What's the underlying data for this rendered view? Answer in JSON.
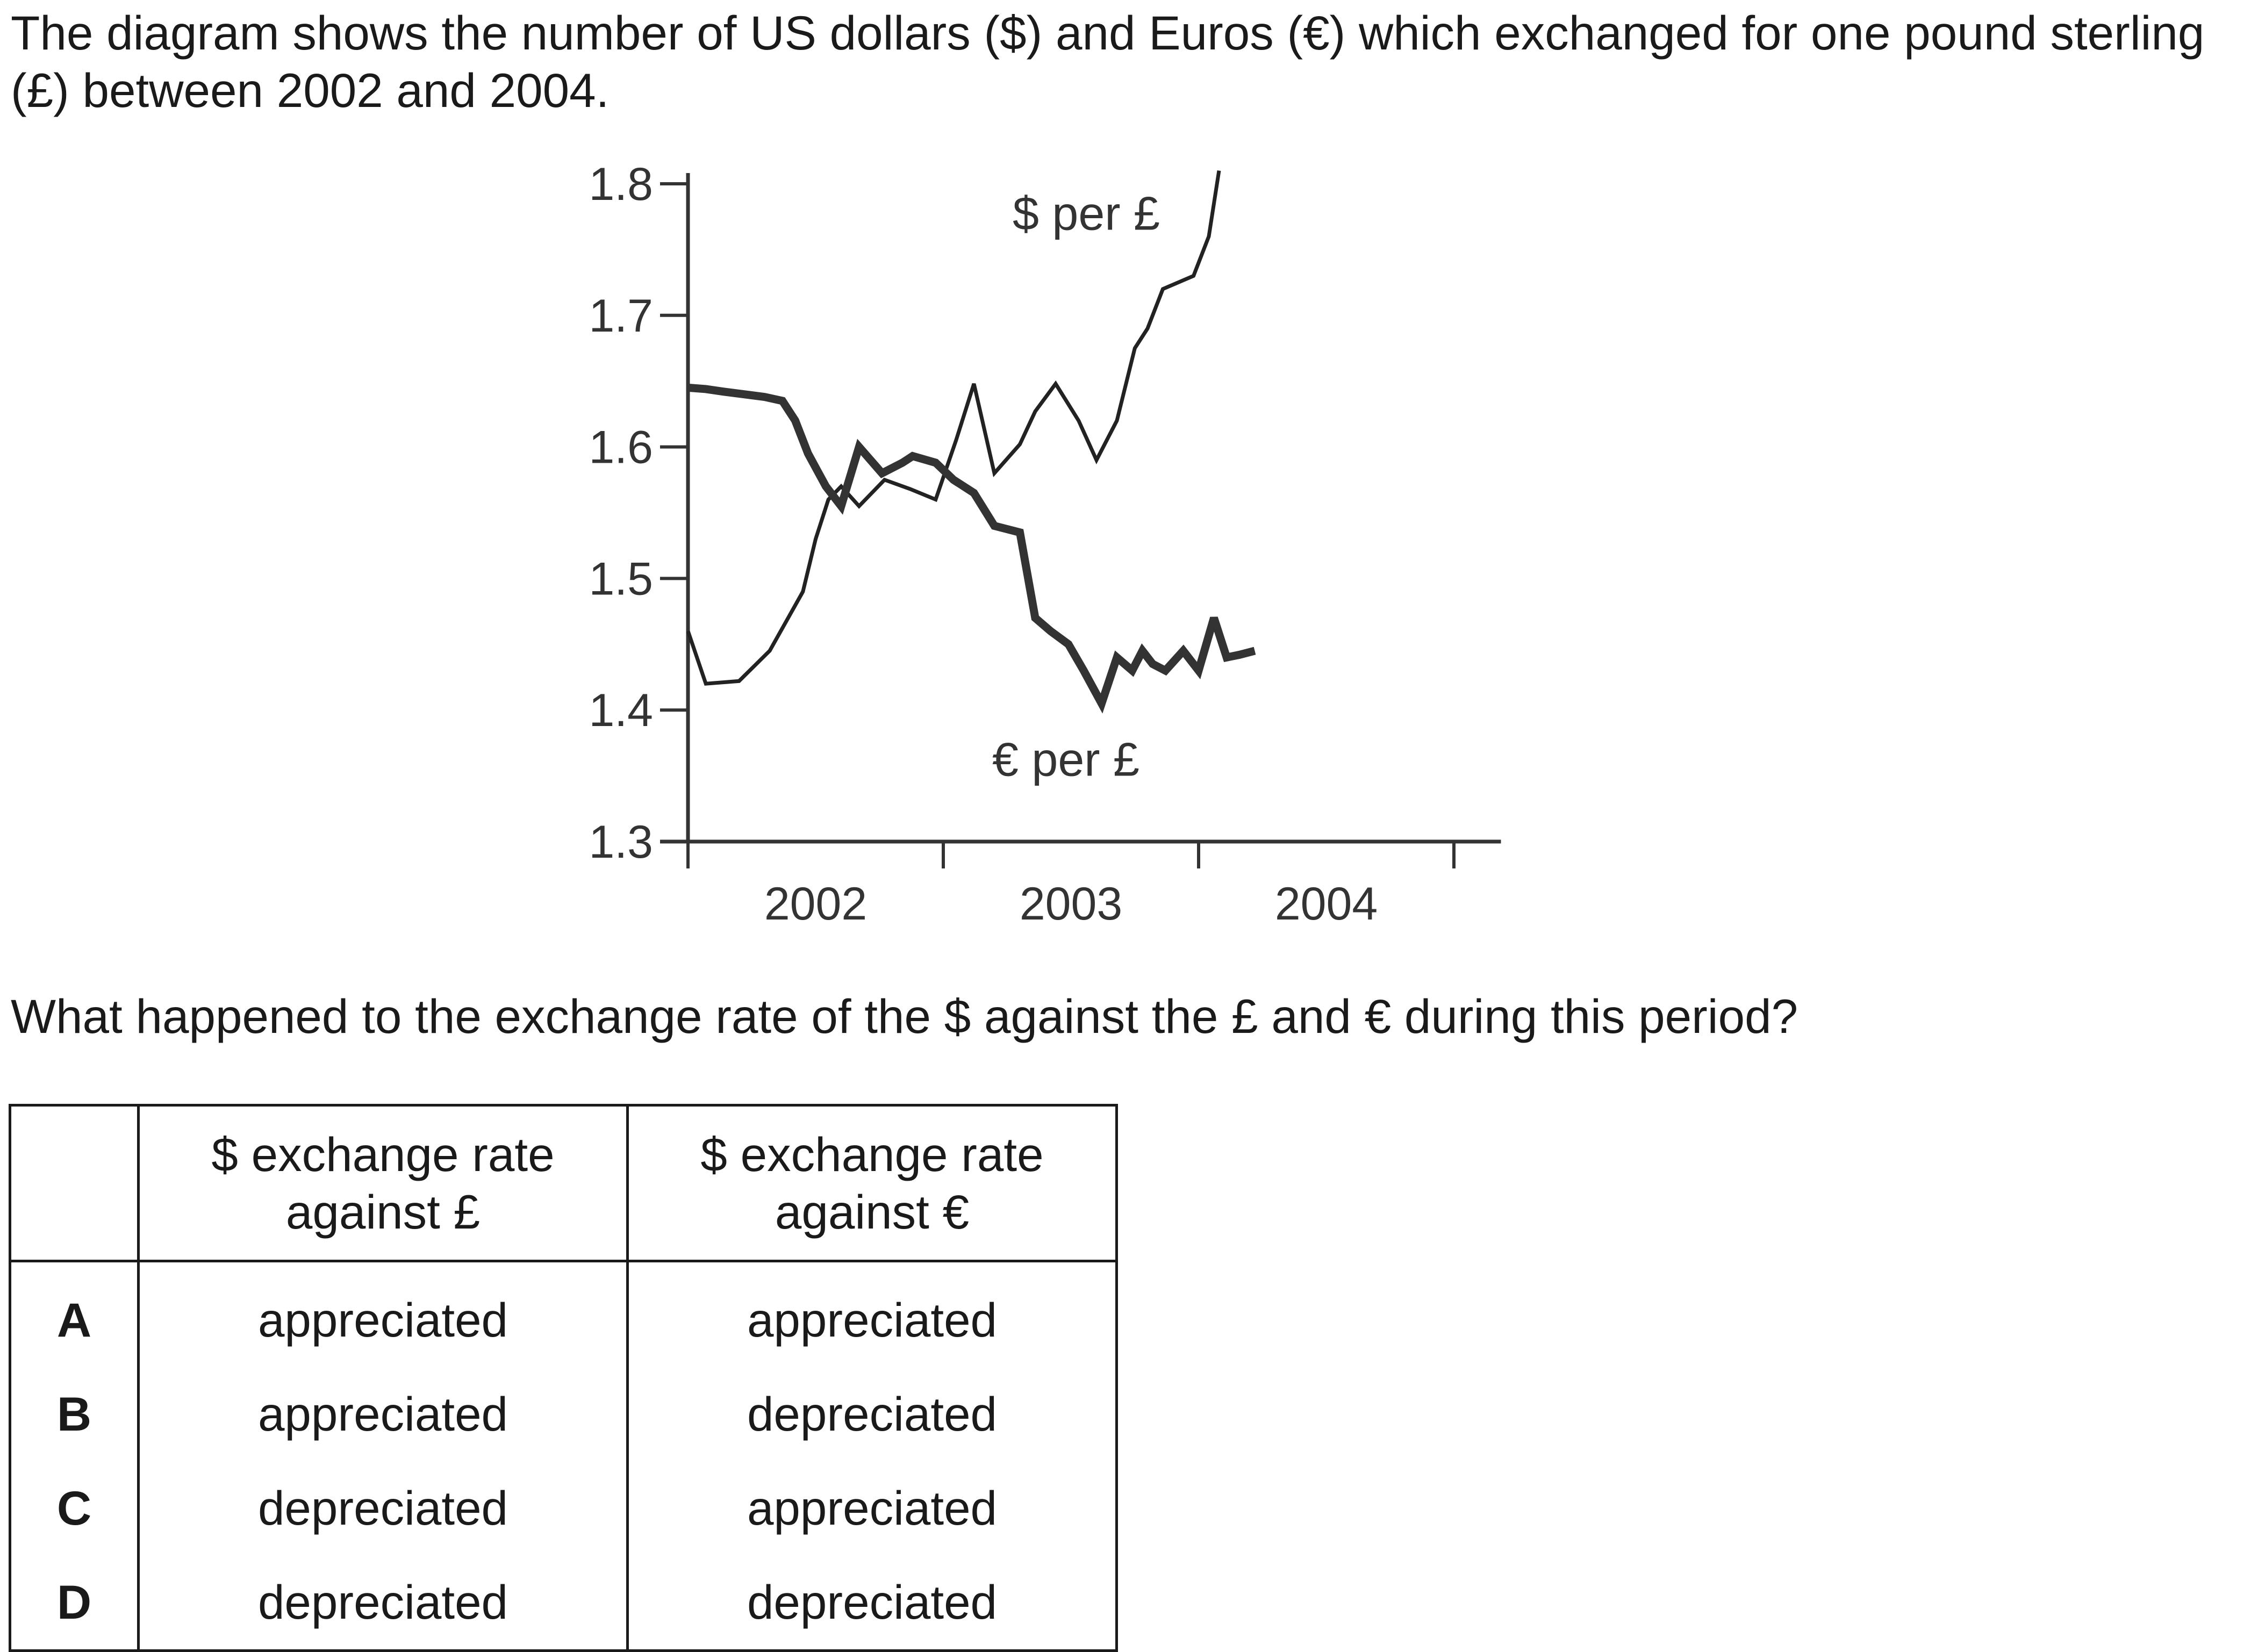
{
  "intro": "The diagram shows the number of US dollars ($) and Euros (€) which exchanged for one pound sterling (£) between 2002 and 2004.",
  "question": "What happened to the exchange rate of the $ against the £ and € during this period?",
  "table": {
    "headers": [
      "",
      "$ exchange rate against £",
      "$ exchange rate against €"
    ],
    "rows": [
      {
        "letter": "A",
        "pound": "appreciated",
        "euro": "appreciated"
      },
      {
        "letter": "B",
        "pound": "appreciated",
        "euro": "depreciated"
      },
      {
        "letter": "C",
        "pound": "depreciated",
        "euro": "appreciated"
      },
      {
        "letter": "D",
        "pound": "depreciated",
        "euro": "depreciated"
      }
    ]
  },
  "chart_data": {
    "type": "line",
    "title": "",
    "xlabel": "",
    "ylabel": "",
    "ylim": [
      1.3,
      1.8
    ],
    "xlim": [
      2002,
      2005.1
    ],
    "y_ticks": [
      "1.3",
      "1.4",
      "1.5",
      "1.6",
      "1.7",
      "1.8"
    ],
    "x_ticks": [
      "2002",
      "2003",
      "2004"
    ],
    "grid": false,
    "series": [
      {
        "name": "$ per £",
        "label_position": "top",
        "color": "#222222",
        "line_weight": "thin",
        "x": [
          2002.0,
          2002.07,
          2002.2,
          2002.32,
          2002.45,
          2002.5,
          2002.55,
          2002.6,
          2002.67,
          2002.77,
          2002.87,
          2002.97,
          2003.05,
          2003.12,
          2003.2,
          2003.3,
          2003.36,
          2003.44,
          2003.53,
          2003.6,
          2003.68,
          2003.75,
          2003.8,
          2003.86,
          2003.98,
          2004.04,
          2004.08
        ],
        "y": [
          1.46,
          1.42,
          1.422,
          1.445,
          1.49,
          1.53,
          1.56,
          1.57,
          1.555,
          1.575,
          1.568,
          1.56,
          1.605,
          1.648,
          1.58,
          1.602,
          1.627,
          1.648,
          1.62,
          1.59,
          1.62,
          1.675,
          1.69,
          1.72,
          1.73,
          1.76,
          1.81
        ]
      },
      {
        "name": "€ per £",
        "label_position": "bottom",
        "color": "#333333",
        "line_weight": "thick",
        "x": [
          2002.0,
          2002.07,
          2002.14,
          2002.22,
          2002.3,
          2002.37,
          2002.42,
          2002.47,
          2002.54,
          2002.6,
          2002.67,
          2002.76,
          2002.84,
          2002.88,
          2002.97,
          2003.04,
          2003.12,
          2003.2,
          2003.3,
          2003.36,
          2003.42,
          2003.49,
          2003.55,
          2003.62,
          2003.68,
          2003.74,
          2003.78,
          2003.82,
          2003.87,
          2003.94,
          2004.0,
          2004.06,
          2004.11,
          2004.16,
          2004.22
        ],
        "y": [
          1.645,
          1.644,
          1.642,
          1.64,
          1.638,
          1.635,
          1.62,
          1.595,
          1.57,
          1.555,
          1.6,
          1.58,
          1.588,
          1.593,
          1.588,
          1.575,
          1.565,
          1.54,
          1.535,
          1.47,
          1.46,
          1.45,
          1.43,
          1.405,
          1.44,
          1.43,
          1.445,
          1.435,
          1.43,
          1.445,
          1.43,
          1.47,
          1.44,
          1.442,
          1.445
        ]
      }
    ]
  }
}
